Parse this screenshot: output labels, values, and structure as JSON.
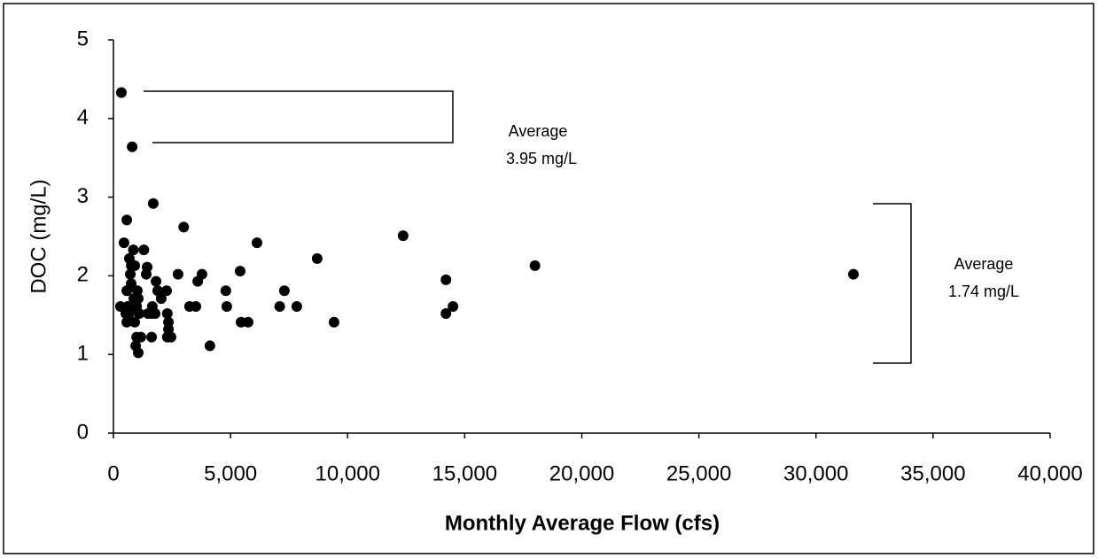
{
  "chart_data": {
    "type": "scatter",
    "x_label": "Monthly Average Flow (cfs)",
    "y_label": "DOC (mg/L)",
    "annotations": [
      {
        "lines": [
          "Average",
          "3.95 mg/L"
        ]
      },
      {
        "lines": [
          "Average",
          "1.74 mg/L"
        ]
      }
    ],
    "color": "#000000",
    "x": [
      340,
      800,
      570,
      1700,
      3000,
      450,
      1300,
      850,
      6130,
      12370,
      8700,
      18000,
      31600,
      14200,
      5410,
      3780,
      3600,
      2760,
      4800,
      7300,
      7100,
      7830,
      4840,
      3250,
      3520,
      5450,
      5750,
      9420,
      4120,
      14200,
      14500,
      2350,
      2350,
      2460,
      2300,
      2300,
      2270,
      2040,
      1890,
      1820,
      1630,
      1780,
      1660,
      1630,
      1440,
      1400,
      1475,
      1020,
      1060,
      990,
      1100,
      1170,
      990,
      950,
      1060,
      910,
      760,
      910,
      680,
      610,
      530,
      570,
      570,
      300,
      830,
      680,
      720,
      870,
      760
    ],
    "y": [
      4.33,
      3.64,
      2.71,
      2.92,
      2.62,
      2.42,
      2.33,
      2.33,
      2.42,
      2.51,
      2.22,
      2.13,
      2.02,
      1.95,
      2.06,
      2.02,
      1.93,
      2.02,
      1.81,
      1.81,
      1.61,
      1.61,
      1.61,
      1.61,
      1.61,
      1.41,
      1.41,
      1.41,
      1.11,
      1.52,
      1.61,
      1.41,
      1.32,
      1.22,
      1.22,
      1.52,
      1.81,
      1.71,
      1.81,
      1.93,
      1.52,
      1.52,
      1.61,
      1.22,
      2.11,
      2.02,
      1.52,
      1.81,
      1.71,
      1.61,
      1.52,
      1.22,
      1.22,
      1.11,
      1.02,
      1.41,
      2.13,
      2.13,
      2.22,
      1.61,
      1.52,
      1.41,
      1.81,
      1.61,
      1.61,
      1.52,
      2.02,
      1.71,
      1.9
    ],
    "xlim": [
      0,
      40000
    ],
    "xticks": [
      0,
      {
        "value": 5000,
        "label": "5,000"
      },
      {
        "value": 10000,
        "label": "10,000"
      },
      {
        "value": 15000,
        "label": "15,000"
      },
      {
        "value": 20000,
        "label": "20,000"
      },
      {
        "value": 25000,
        "label": "25,000"
      },
      {
        "value": 30000,
        "label": "30,000"
      },
      {
        "value": 35000,
        "label": "35,000"
      },
      {
        "value": 40000,
        "label": "40,000"
      }
    ],
    "ylim": [
      0,
      5
    ],
    "yticks": [
      0,
      1,
      2,
      3,
      4,
      5
    ],
    "grid": false
  }
}
